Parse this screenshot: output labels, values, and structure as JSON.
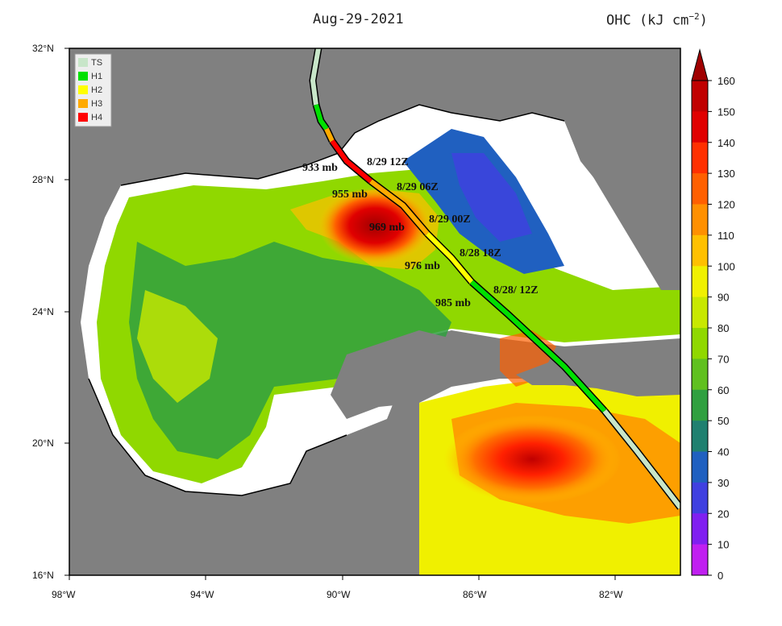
{
  "header": {
    "date": "Aug-29-2021",
    "variable_label": "OHC (kJ cm",
    "variable_exp": "−2",
    "variable_close": ")"
  },
  "axes": {
    "lat_ticks": [
      "32°N",
      "28°N",
      "24°N",
      "20°N",
      "16°N"
    ],
    "lon_ticks": [
      "98°W",
      "94°W",
      "90°W",
      "86°W",
      "82°W"
    ]
  },
  "legend": [
    {
      "label": "TS",
      "color": "#c8e6c9"
    },
    {
      "label": "H1",
      "color": "#00e000"
    },
    {
      "label": "H2",
      "color": "#ffff00"
    },
    {
      "label": "H3",
      "color": "#ffaa00"
    },
    {
      "label": "H4",
      "color": "#ff0000"
    }
  ],
  "colorbar": {
    "ticks": [
      "160",
      "150",
      "140",
      "130",
      "120",
      "110",
      "100",
      "90",
      "80",
      "70",
      "60",
      "50",
      "40",
      "30",
      "20",
      "10",
      "0"
    ],
    "colors": [
      "#c00000",
      "#e00000",
      "#ff3000",
      "#ff6000",
      "#ff9000",
      "#ffc000",
      "#f0f000",
      "#c8e800",
      "#90d800",
      "#60c020",
      "#30a040",
      "#208070",
      "#2060c0",
      "#4040e0",
      "#8020f0",
      "#c020f0",
      "#e040ff"
    ]
  },
  "annotations": {
    "p933": "933 mb",
    "p955": "955 mb",
    "p969": "969 mb",
    "p976": "976 mb",
    "p985": "985 mb",
    "t1": "8/29 12Z",
    "t2": "8/29 06Z",
    "t3": "8/29 00Z",
    "t4": "8/28 18Z",
    "t5": "8/28/ 12Z"
  },
  "colors": {
    "land": "#808080",
    "no_data": "#ffffff",
    "frame": "#000000"
  }
}
